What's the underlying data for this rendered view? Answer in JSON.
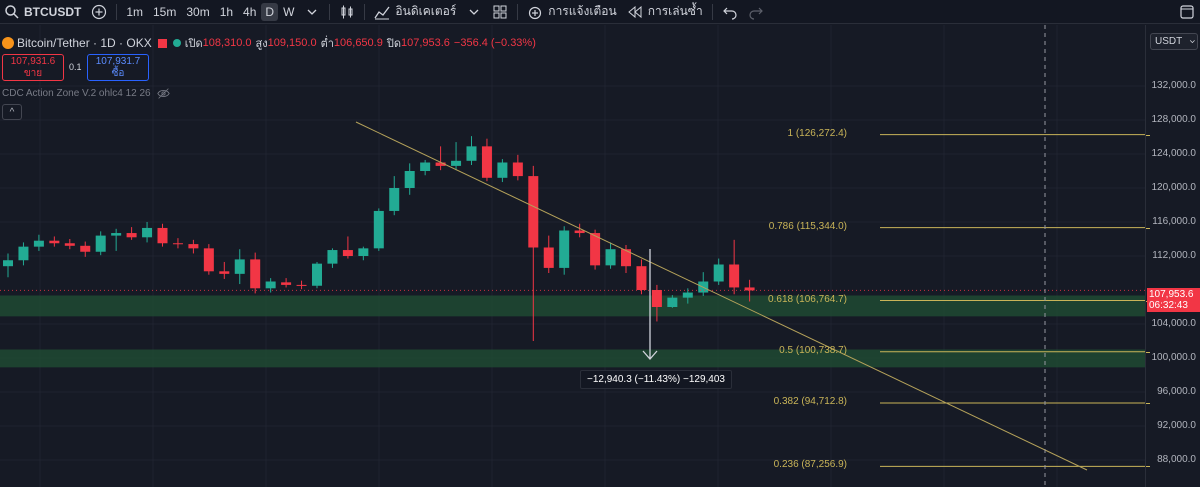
{
  "toolbar": {
    "symbol": "BTCUSDT",
    "timeframes": [
      "1m",
      "15m",
      "30m",
      "1h",
      "4h",
      "D",
      "W"
    ],
    "active_timeframe": "D",
    "indicators_label": "อินดิเคเตอร์",
    "alerts_label": "การแจ้งเตือน",
    "replay_label": "การเล่นซ้ำ"
  },
  "legend": {
    "title": "Bitcoin/Tether · 1D · OKX",
    "open_label": "เปิด",
    "open": "108,310.0",
    "high_label": "สูง",
    "high": "109,150.0",
    "low_label": "ต่ำ",
    "low": "106,650.9",
    "close_label": "ปิด",
    "close": "107,953.6",
    "change": "−356.4 (−0.33%)"
  },
  "trade": {
    "sell_price": "107,931.6",
    "sell_label": "ขาย",
    "spread": "0.1",
    "buy_price": "107,931.7",
    "buy_label": "ซื้อ"
  },
  "indicator_label": "CDC Action Zone V.2 ohlc4 12 26",
  "collapse_glyph": "^",
  "currency": "USDT",
  "current_price": "107,953.6",
  "countdown": "06:32:43",
  "measure_label": "−12,940.3 (−11.43%) −129,403",
  "fib_levels": [
    {
      "label": "1 (126,272.4)",
      "price": 126272.4
    },
    {
      "label": "0.786 (115,344.0)",
      "price": 115344.0
    },
    {
      "label": "0.618 (106,764.7)",
      "price": 106764.7
    },
    {
      "label": "0.5 (100,738.7)",
      "price": 100738.7
    },
    {
      "label": "0.382 (94,712.8)",
      "price": 94712.8
    },
    {
      "label": "0.236 (87,256.9)",
      "price": 87256.9
    }
  ],
  "axis_ticks": [
    "132,000.0",
    "128,000.0",
    "124,000.0",
    "120,000.0",
    "116,000.0",
    "112,000.0",
    "104,000.0",
    "100,000.0",
    "96,000.0",
    "92,000.0",
    "88,000.0"
  ],
  "axis_tick_values": [
    132000,
    128000,
    124000,
    120000,
    116000,
    112000,
    104000,
    100000,
    96000,
    92000,
    88000
  ],
  "colors": {
    "up": "#22ab94",
    "down": "#f23645",
    "fib": "#c9b458",
    "zone": "#1f4a33"
  },
  "chart_data": {
    "type": "candlestick",
    "ylim": [
      86000,
      136000
    ],
    "candles": [
      {
        "o": 110800,
        "h": 112300,
        "l": 109500,
        "c": 111500
      },
      {
        "o": 111500,
        "h": 113600,
        "l": 110900,
        "c": 113100
      },
      {
        "o": 113100,
        "h": 114500,
        "l": 112600,
        "c": 113800
      },
      {
        "o": 113800,
        "h": 114300,
        "l": 113100,
        "c": 113500
      },
      {
        "o": 113500,
        "h": 114000,
        "l": 112800,
        "c": 113200
      },
      {
        "o": 113200,
        "h": 113700,
        "l": 111900,
        "c": 112500
      },
      {
        "o": 112500,
        "h": 114900,
        "l": 112100,
        "c": 114400
      },
      {
        "o": 114400,
        "h": 115200,
        "l": 112600,
        "c": 114700
      },
      {
        "o": 114700,
        "h": 115400,
        "l": 113900,
        "c": 114200
      },
      {
        "o": 114200,
        "h": 116000,
        "l": 113600,
        "c": 115300
      },
      {
        "o": 115300,
        "h": 115800,
        "l": 113100,
        "c": 113500
      },
      {
        "o": 113500,
        "h": 114100,
        "l": 112900,
        "c": 113400
      },
      {
        "o": 113400,
        "h": 113900,
        "l": 112300,
        "c": 112900
      },
      {
        "o": 112900,
        "h": 113400,
        "l": 109800,
        "c": 110200
      },
      {
        "o": 110200,
        "h": 111300,
        "l": 109300,
        "c": 109900
      },
      {
        "o": 109900,
        "h": 112800,
        "l": 108700,
        "c": 111600
      },
      {
        "o": 111600,
        "h": 112400,
        "l": 107600,
        "c": 108200
      },
      {
        "o": 108200,
        "h": 109400,
        "l": 107700,
        "c": 109000
      },
      {
        "o": 108900,
        "h": 109400,
        "l": 108300,
        "c": 108600
      },
      {
        "o": 108600,
        "h": 109100,
        "l": 108100,
        "c": 108500
      },
      {
        "o": 108500,
        "h": 111300,
        "l": 108200,
        "c": 111100
      },
      {
        "o": 111100,
        "h": 112900,
        "l": 110600,
        "c": 112700
      },
      {
        "o": 112700,
        "h": 114300,
        "l": 111700,
        "c": 112000
      },
      {
        "o": 112000,
        "h": 113100,
        "l": 111500,
        "c": 112900
      },
      {
        "o": 112900,
        "h": 117600,
        "l": 112600,
        "c": 117300
      },
      {
        "o": 117300,
        "h": 121400,
        "l": 116800,
        "c": 120000
      },
      {
        "o": 120000,
        "h": 122900,
        "l": 119200,
        "c": 122000
      },
      {
        "o": 122000,
        "h": 123300,
        "l": 121500,
        "c": 123000
      },
      {
        "o": 123000,
        "h": 124900,
        "l": 122100,
        "c": 122600
      },
      {
        "o": 122600,
        "h": 125400,
        "l": 122100,
        "c": 123200
      },
      {
        "o": 123200,
        "h": 126100,
        "l": 122700,
        "c": 124900
      },
      {
        "o": 124900,
        "h": 125800,
        "l": 120800,
        "c": 121200
      },
      {
        "o": 121200,
        "h": 123400,
        "l": 120700,
        "c": 123000
      },
      {
        "o": 123000,
        "h": 123900,
        "l": 120900,
        "c": 121400
      },
      {
        "o": 121400,
        "h": 122600,
        "l": 102000,
        "c": 113000
      },
      {
        "o": 113000,
        "h": 114400,
        "l": 110000,
        "c": 110600
      },
      {
        "o": 110600,
        "h": 115500,
        "l": 109800,
        "c": 115000
      },
      {
        "o": 115000,
        "h": 115800,
        "l": 114200,
        "c": 114700
      },
      {
        "o": 114700,
        "h": 115100,
        "l": 110400,
        "c": 110900
      },
      {
        "o": 110900,
        "h": 113600,
        "l": 110500,
        "c": 112800
      },
      {
        "o": 112800,
        "h": 113300,
        "l": 110000,
        "c": 110800
      },
      {
        "o": 110800,
        "h": 111600,
        "l": 107500,
        "c": 108000
      },
      {
        "o": 108000,
        "h": 108600,
        "l": 104300,
        "c": 106000
      },
      {
        "o": 106000,
        "h": 107400,
        "l": 105900,
        "c": 107100
      },
      {
        "o": 107100,
        "h": 108200,
        "l": 106400,
        "c": 107700
      },
      {
        "o": 107700,
        "h": 110100,
        "l": 107300,
        "c": 109000
      },
      {
        "o": 109000,
        "h": 111700,
        "l": 108600,
        "c": 111000
      },
      {
        "o": 111000,
        "h": 113900,
        "l": 107500,
        "c": 108300
      },
      {
        "o": 108300,
        "h": 109200,
        "l": 106650,
        "c": 107950
      }
    ]
  }
}
